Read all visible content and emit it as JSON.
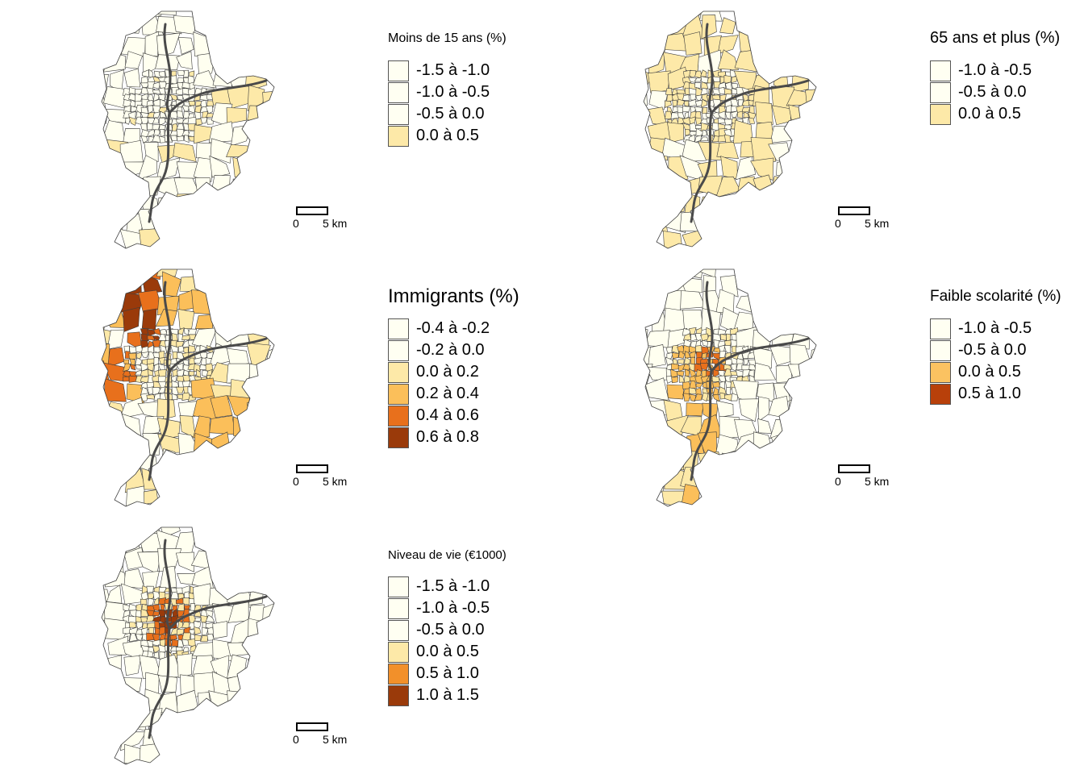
{
  "colors": {
    "c1": "#fffff0",
    "c2": "#fff6d0",
    "c3": "#fde9a8",
    "c4": "#fbbf5a",
    "c5": "#e8701c",
    "c6": "#9a3a0a",
    "border": "#3d3d3d",
    "river": "#4a4a4a"
  },
  "panels": [
    {
      "id": "moins15",
      "title": "Moins de 15 ans (%)",
      "legend": [
        {
          "label": "-1.5 à -1.0",
          "color": "#fffff2"
        },
        {
          "label": "-1.0 à -0.5",
          "color": "#fffff2"
        },
        {
          "label": "-0.5 à 0.0",
          "color": "#fffff2"
        },
        {
          "label": "0.0 à 0.5",
          "color": "#fde9a8"
        }
      ],
      "scale": {
        "zero": "0",
        "km": "5 km"
      }
    },
    {
      "id": "plus65",
      "title": "65 ans et plus (%)",
      "legend": [
        {
          "label": "-1.0 à -0.5",
          "color": "#fffff2"
        },
        {
          "label": "-0.5 à 0.0",
          "color": "#fffff2"
        },
        {
          "label": "0.0 à 0.5",
          "color": "#fde9a8"
        }
      ],
      "scale": {
        "zero": "0",
        "km": "5 km"
      }
    },
    {
      "id": "immigrants",
      "title": "Immigrants (%)",
      "legend": [
        {
          "label": "-0.4 à -0.2",
          "color": "#fffff2"
        },
        {
          "label": "-0.2 à 0.0",
          "color": "#fffff2"
        },
        {
          "label": "0.0 à 0.2",
          "color": "#fde9a8"
        },
        {
          "label": "0.2 à 0.4",
          "color": "#fbbf5a"
        },
        {
          "label": "0.4 à 0.6",
          "color": "#e8701c"
        },
        {
          "label": "0.6 à 0.8",
          "color": "#9a3a0a"
        }
      ],
      "scale": {
        "zero": "0",
        "km": "5 km"
      }
    },
    {
      "id": "scolarite",
      "title": "Faible scolarité (%)",
      "legend": [
        {
          "label": "-1.0 à -0.5",
          "color": "#fffff2"
        },
        {
          "label": "-0.5 à 0.0",
          "color": "#fffff2"
        },
        {
          "label": "0.0 à 0.5",
          "color": "#fbc261"
        },
        {
          "label": "0.5 à 1.0",
          "color": "#b8400a"
        }
      ],
      "scale": {
        "zero": "0",
        "km": "5 km"
      }
    },
    {
      "id": "niveauvie",
      "title": "Niveau de vie (€1000)",
      "legend": [
        {
          "label": "-1.5 à -1.0",
          "color": "#fffff2"
        },
        {
          "label": "-1.0 à -0.5",
          "color": "#fffff2"
        },
        {
          "label": "-0.5 à 0.0",
          "color": "#fffff2"
        },
        {
          "label": "0.0 à 0.5",
          "color": "#fde9a8"
        },
        {
          "label": "0.5 à 1.0",
          "color": "#f2902a"
        },
        {
          "label": "1.0 à 1.5",
          "color": "#9a3a0a"
        }
      ],
      "scale": {
        "zero": "0",
        "km": "5 km"
      }
    }
  ]
}
